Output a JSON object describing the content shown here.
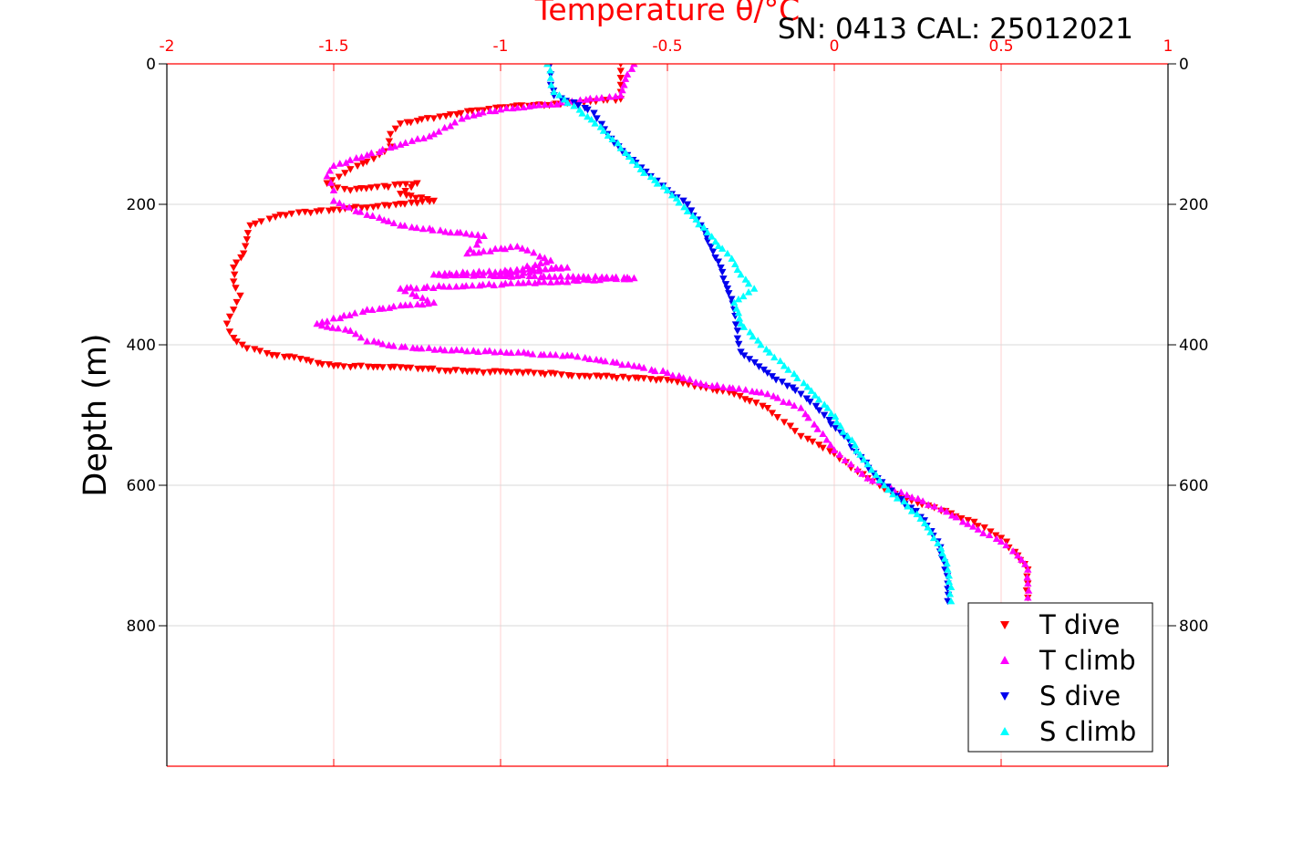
{
  "chart_data": {
    "type": "scatter",
    "title": "Temperature θ/°C",
    "annotation": "SN: 0413  CAL: 25012021",
    "xlabel": "Temperature θ/°C",
    "ylabel": "Depth (m)",
    "xlim": [
      -2,
      1
    ],
    "ylim": [
      0,
      1000
    ],
    "y_inverted": true,
    "x_axis_position": "top",
    "grid": true,
    "legend_position": "bottom-right",
    "xticks": [
      "-2",
      "-1.5",
      "-1",
      "-0.5",
      "0",
      "0.5",
      "1"
    ],
    "xtick_values": [
      -2,
      -1.5,
      -1,
      -0.5,
      0,
      0.5,
      1
    ],
    "yticks": [
      "0",
      "200",
      "400",
      "600",
      "800"
    ],
    "ytick_values": [
      0,
      200,
      400,
      600,
      800
    ],
    "colors": {
      "t_axis": "#ff0000",
      "grid_x": "#ffd0d0",
      "grid_y": "#d9d9d9",
      "t_dive": "#ff0000",
      "t_climb": "#ff00ff",
      "s_dive": "#0000ee",
      "s_climb": "#00ffff"
    },
    "series": [
      {
        "name": "T dive",
        "marker": "triangle-down",
        "color": "#ff0000",
        "points": [
          [
            -0.64,
            0
          ],
          [
            -0.64,
            10
          ],
          [
            -0.64,
            20
          ],
          [
            -0.64,
            30
          ],
          [
            -0.64,
            40
          ],
          [
            -0.64,
            50
          ],
          [
            -0.75,
            55
          ],
          [
            -1.0,
            62
          ],
          [
            -1.15,
            72
          ],
          [
            -1.3,
            85
          ],
          [
            -1.33,
            100
          ],
          [
            -1.33,
            118
          ],
          [
            -1.38,
            135
          ],
          [
            -1.45,
            150
          ],
          [
            -1.52,
            170
          ],
          [
            -1.45,
            180
          ],
          [
            -1.25,
            170
          ],
          [
            -1.3,
            185
          ],
          [
            -1.2,
            195
          ],
          [
            -1.55,
            210
          ],
          [
            -1.66,
            215
          ],
          [
            -1.75,
            230
          ],
          [
            -1.76,
            250
          ],
          [
            -1.77,
            270
          ],
          [
            -1.8,
            290
          ],
          [
            -1.8,
            310
          ],
          [
            -1.78,
            330
          ],
          [
            -1.8,
            350
          ],
          [
            -1.82,
            370
          ],
          [
            -1.8,
            390
          ],
          [
            -1.76,
            405
          ],
          [
            -1.7,
            412
          ],
          [
            -1.6,
            420
          ],
          [
            -1.5,
            430
          ],
          [
            -1.3,
            432
          ],
          [
            -1.1,
            438
          ],
          [
            -0.9,
            440
          ],
          [
            -0.7,
            445
          ],
          [
            -0.5,
            450
          ],
          [
            -0.4,
            460
          ],
          [
            -0.3,
            470
          ],
          [
            -0.2,
            490
          ],
          [
            -0.15,
            510
          ],
          [
            -0.1,
            530
          ],
          [
            0.0,
            555
          ],
          [
            0.05,
            575
          ],
          [
            0.1,
            590
          ],
          [
            0.15,
            605
          ],
          [
            0.25,
            625
          ],
          [
            0.35,
            640
          ],
          [
            0.45,
            660
          ],
          [
            0.5,
            675
          ],
          [
            0.55,
            700
          ],
          [
            0.58,
            720
          ],
          [
            0.58,
            740
          ],
          [
            0.58,
            760
          ]
        ]
      },
      {
        "name": "T climb",
        "marker": "triangle-up",
        "color": "#ff00ff",
        "points": [
          [
            -0.6,
            0
          ],
          [
            -0.62,
            15
          ],
          [
            -0.63,
            30
          ],
          [
            -0.64,
            45
          ],
          [
            -0.8,
            55
          ],
          [
            -1.0,
            65
          ],
          [
            -1.1,
            75
          ],
          [
            -1.2,
            100
          ],
          [
            -1.3,
            115
          ],
          [
            -1.4,
            130
          ],
          [
            -1.5,
            145
          ],
          [
            -1.52,
            160
          ],
          [
            -1.5,
            180
          ],
          [
            -1.5,
            195
          ],
          [
            -1.4,
            215
          ],
          [
            -1.3,
            230
          ],
          [
            -1.05,
            245
          ],
          [
            -1.1,
            270
          ],
          [
            -0.95,
            260
          ],
          [
            -0.85,
            280
          ],
          [
            -1.0,
            300
          ],
          [
            -0.8,
            290
          ],
          [
            -1.2,
            300
          ],
          [
            -0.6,
            305
          ],
          [
            -1.3,
            320
          ],
          [
            -1.2,
            340
          ],
          [
            -1.4,
            350
          ],
          [
            -1.55,
            370
          ],
          [
            -1.45,
            380
          ],
          [
            -1.4,
            395
          ],
          [
            -1.25,
            405
          ],
          [
            -1.0,
            410
          ],
          [
            -0.8,
            415
          ],
          [
            -0.6,
            430
          ],
          [
            -0.5,
            440
          ],
          [
            -0.4,
            455
          ],
          [
            -0.2,
            470
          ],
          [
            -0.1,
            490
          ],
          [
            -0.05,
            520
          ],
          [
            0.0,
            550
          ],
          [
            0.05,
            570
          ],
          [
            0.1,
            590
          ],
          [
            0.2,
            610
          ],
          [
            0.3,
            630
          ],
          [
            0.4,
            655
          ],
          [
            0.5,
            680
          ],
          [
            0.55,
            700
          ],
          [
            0.58,
            720
          ],
          [
            0.58,
            740
          ],
          [
            0.58,
            760
          ]
        ]
      },
      {
        "name": "S dive",
        "marker": "triangle-down",
        "color": "#0000ee",
        "points": [
          [
            -0.85,
            0
          ],
          [
            -0.85,
            15
          ],
          [
            -0.85,
            30
          ],
          [
            -0.84,
            45
          ],
          [
            -0.78,
            55
          ],
          [
            -0.72,
            70
          ],
          [
            -0.68,
            100
          ],
          [
            -0.62,
            130
          ],
          [
            -0.55,
            160
          ],
          [
            -0.5,
            180
          ],
          [
            -0.44,
            200
          ],
          [
            -0.4,
            230
          ],
          [
            -0.37,
            260
          ],
          [
            -0.34,
            290
          ],
          [
            -0.32,
            320
          ],
          [
            -0.3,
            350
          ],
          [
            -0.29,
            380
          ],
          [
            -0.28,
            410
          ],
          [
            -0.2,
            440
          ],
          [
            -0.1,
            470
          ],
          [
            -0.03,
            500
          ],
          [
            0.03,
            530
          ],
          [
            0.08,
            560
          ],
          [
            0.13,
            590
          ],
          [
            0.2,
            620
          ],
          [
            0.27,
            650
          ],
          [
            0.31,
            680
          ],
          [
            0.33,
            710
          ],
          [
            0.34,
            740
          ],
          [
            0.34,
            765
          ]
        ]
      },
      {
        "name": "S climb",
        "marker": "triangle-up",
        "color": "#00ffff",
        "points": [
          [
            -0.86,
            0
          ],
          [
            -0.85,
            20
          ],
          [
            -0.84,
            40
          ],
          [
            -0.78,
            60
          ],
          [
            -0.7,
            90
          ],
          [
            -0.64,
            120
          ],
          [
            -0.58,
            150
          ],
          [
            -0.5,
            180
          ],
          [
            -0.44,
            210
          ],
          [
            -0.38,
            240
          ],
          [
            -0.32,
            270
          ],
          [
            -0.28,
            300
          ],
          [
            -0.24,
            320
          ],
          [
            -0.3,
            340
          ],
          [
            -0.28,
            370
          ],
          [
            -0.22,
            400
          ],
          [
            -0.15,
            430
          ],
          [
            -0.08,
            460
          ],
          [
            -0.02,
            490
          ],
          [
            0.04,
            530
          ],
          [
            0.1,
            570
          ],
          [
            0.15,
            600
          ],
          [
            0.22,
            630
          ],
          [
            0.28,
            660
          ],
          [
            0.32,
            690
          ],
          [
            0.34,
            720
          ],
          [
            0.35,
            745
          ],
          [
            0.35,
            765
          ]
        ]
      }
    ]
  }
}
